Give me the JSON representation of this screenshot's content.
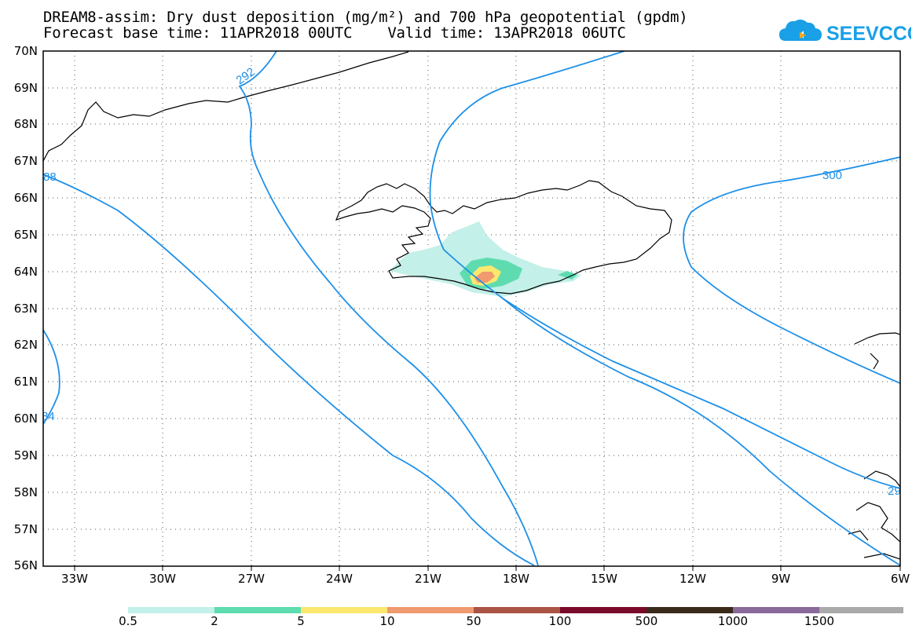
{
  "title": {
    "line1": "DREAM8-assim: Dry dust deposition (mg/m²) and 700 hPa geopotential (gpdm)",
    "line2": "Forecast base time: 11APR2018 00UTC    Valid time: 13APR2018 06UTC"
  },
  "logo": {
    "text": "SEEVCCC",
    "icon": "cloud-icon"
  },
  "axes": {
    "lat_labels": [
      "70N",
      "69N",
      "68N",
      "67N",
      "66N",
      "65N",
      "64N",
      "63N",
      "62N",
      "61N",
      "60N",
      "59N",
      "58N",
      "57N",
      "56N"
    ],
    "lon_labels": [
      "33W",
      "30W",
      "27W",
      "24W",
      "21W",
      "18W",
      "15W",
      "12W",
      "9W",
      "6W"
    ]
  },
  "contours": {
    "labels": [
      "292",
      "300",
      "88",
      "84",
      "29"
    ],
    "color": "#1e90e8"
  },
  "colorbar": {
    "labels": [
      "0.5",
      "2",
      "5",
      "10",
      "50",
      "100",
      "500",
      "1000",
      "1500"
    ],
    "colors": [
      "#c3f0e8",
      "#5edcb0",
      "#fbe86e",
      "#f09a70",
      "#aa5446",
      "#7a0a2a",
      "#3a2a1a",
      "#8a6a9a",
      "#aaaaaa"
    ]
  },
  "dust": {
    "colors": [
      "#c3f0e8",
      "#5edcb0",
      "#fbe86e",
      "#f09a70"
    ]
  }
}
